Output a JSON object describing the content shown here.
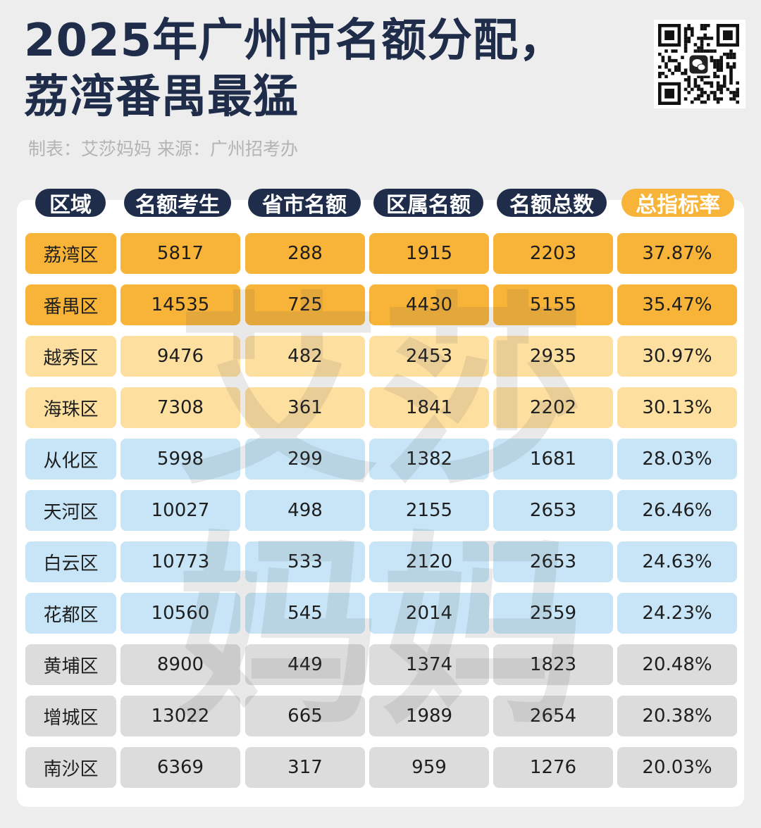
{
  "title_line1": "2025年广州市名额分配，",
  "title_line2": "荔湾番禺最猛",
  "subtitle": "制表：艾莎妈妈 来源：广州招考办",
  "watermark_text": "艾莎妈妈",
  "colors": {
    "title": "#1f2d4a",
    "header_pill": "#1f2d4a",
    "header_accent": "#f8b339",
    "tier_dark_orange": "#f8b339",
    "tier_light_orange": "#fde0a0",
    "tier_blue": "#c7e5f7",
    "tier_gray": "#dcdcdc"
  },
  "table": {
    "headers": [
      "区域",
      "名额考生",
      "省市名额",
      "区属名额",
      "名额总数",
      "总指标率"
    ],
    "rows": [
      {
        "tier": "tier_dark_orange",
        "cells": [
          "荔湾区",
          "5817",
          "288",
          "1915",
          "2203",
          "37.87%"
        ]
      },
      {
        "tier": "tier_dark_orange",
        "cells": [
          "番禺区",
          "14535",
          "725",
          "4430",
          "5155",
          "35.47%"
        ]
      },
      {
        "tier": "tier_light_orange",
        "cells": [
          "越秀区",
          "9476",
          "482",
          "2453",
          "2935",
          "30.97%"
        ]
      },
      {
        "tier": "tier_light_orange",
        "cells": [
          "海珠区",
          "7308",
          "361",
          "1841",
          "2202",
          "30.13%"
        ]
      },
      {
        "tier": "tier_blue",
        "cells": [
          "从化区",
          "5998",
          "299",
          "1382",
          "1681",
          "28.03%"
        ]
      },
      {
        "tier": "tier_blue",
        "cells": [
          "天河区",
          "10027",
          "498",
          "2155",
          "2653",
          "26.46%"
        ]
      },
      {
        "tier": "tier_blue",
        "cells": [
          "白云区",
          "10773",
          "533",
          "2120",
          "2653",
          "24.63%"
        ]
      },
      {
        "tier": "tier_blue",
        "cells": [
          "花都区",
          "10560",
          "545",
          "2014",
          "2559",
          "24.23%"
        ]
      },
      {
        "tier": "tier_gray",
        "cells": [
          "黄埔区",
          "8900",
          "449",
          "1374",
          "1823",
          "20.48%"
        ]
      },
      {
        "tier": "tier_gray",
        "cells": [
          "增城区",
          "13022",
          "665",
          "1989",
          "2654",
          "20.38%"
        ]
      },
      {
        "tier": "tier_gray",
        "cells": [
          "南沙区",
          "6369",
          "317",
          "959",
          "1276",
          "20.03%"
        ]
      }
    ]
  },
  "qr_icon": "wechat-qr-code-icon"
}
